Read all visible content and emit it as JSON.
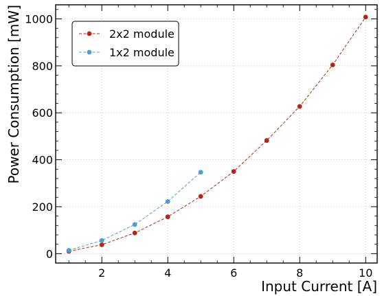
{
  "chart_data": {
    "type": "line",
    "x": [
      1,
      2,
      3,
      4,
      5,
      6,
      7,
      8,
      9,
      10
    ],
    "series": [
      {
        "name": "2x2 module",
        "color": "#b8250f",
        "line_style": "dashed",
        "marker": "circle",
        "x": [
          1,
          2,
          3,
          4,
          5,
          6,
          7,
          8,
          9,
          10
        ],
        "values": [
          10,
          38,
          88,
          157,
          244,
          350,
          482,
          627,
          804,
          1008
        ]
      },
      {
        "name": "1x2 module",
        "color": "#4a9edb",
        "line_style": "dashed",
        "marker": "circle",
        "x": [
          1,
          2,
          3,
          4,
          5
        ],
        "values": [
          14,
          56,
          124,
          222,
          347
        ]
      }
    ],
    "xlabel": "Input Current [A]",
    "ylabel": "Power Consumption [mW]",
    "xlim": [
      0.6,
      10.35
    ],
    "ylim": [
      -40,
      1060
    ],
    "xticks": [
      2,
      4,
      6,
      8,
      10
    ],
    "yticks": [
      0,
      200,
      400,
      600,
      800,
      1000
    ],
    "grid": true,
    "legend_position": "top-left"
  }
}
